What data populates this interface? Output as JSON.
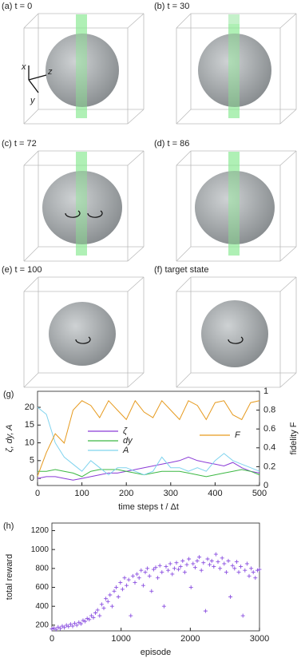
{
  "panels": [
    {
      "label": "(a) t = 0"
    },
    {
      "label": "(b) t = 30"
    },
    {
      "label": "(c) t = 72"
    },
    {
      "label": "(d) t = 86"
    },
    {
      "label": "(e) t = 100"
    },
    {
      "label": "(f) target state"
    }
  ],
  "triad": {
    "x": "x",
    "y": "y",
    "z": "z"
  },
  "chart_data": [
    {
      "type": "line",
      "panel_label": "(g)",
      "x_label": "time steps t / Δt",
      "y_label": "ζ, dy, A",
      "y2_label": "fidelity F",
      "x": [
        0,
        20,
        40,
        60,
        80,
        100,
        120,
        140,
        160,
        180,
        200,
        220,
        240,
        260,
        280,
        300,
        320,
        340,
        360,
        380,
        400,
        420,
        440,
        460,
        480,
        500
      ],
      "xlim": [
        0,
        500
      ],
      "xticks": [
        0,
        100,
        200,
        300,
        400,
        500
      ],
      "ylim": [
        -2,
        24.5
      ],
      "yticks": [
        0,
        5,
        10,
        15,
        20
      ],
      "y2lim": [
        0,
        1
      ],
      "y2ticks": [
        0,
        0.2,
        0.4,
        0.6,
        0.8,
        1
      ],
      "series": [
        {
          "name": "ζ",
          "color": "#8a3ad6",
          "values": [
            0,
            0.5,
            0.5,
            0,
            -0.5,
            0,
            0.5,
            1,
            1.5,
            1.5,
            2,
            2.5,
            3,
            3.5,
            4,
            4.5,
            5,
            6,
            5,
            4.5,
            4,
            3.5,
            4.5,
            3,
            2,
            1.5
          ]
        },
        {
          "name": "dy",
          "color": "#3cb843",
          "values": [
            2,
            2,
            2.5,
            2,
            1.5,
            0.5,
            2,
            2.5,
            2.5,
            2.5,
            2,
            1.5,
            1,
            1.5,
            2,
            2,
            2,
            1.5,
            1,
            0.5,
            1,
            1.5,
            2,
            2.5,
            2,
            1
          ]
        },
        {
          "name": "A",
          "color": "#7fd3ee",
          "values": [
            20,
            18,
            10,
            6,
            4,
            2,
            5,
            3,
            1,
            3,
            3,
            2,
            1,
            2,
            6,
            3,
            3,
            2,
            3,
            2,
            5,
            7,
            5,
            4,
            3,
            2
          ]
        },
        {
          "name": "F",
          "color": "#e69a1e",
          "axis": "y2",
          "values": [
            0.1,
            0.35,
            0.55,
            0.45,
            0.8,
            0.9,
            0.85,
            0.72,
            0.9,
            0.8,
            0.7,
            0.9,
            0.78,
            0.72,
            0.9,
            0.8,
            0.7,
            0.9,
            0.85,
            0.7,
            0.88,
            0.9,
            0.75,
            0.7,
            0.88,
            0.9
          ]
        }
      ]
    },
    {
      "type": "scatter",
      "panel_label": "(h)",
      "x_label": "episode",
      "y_label": "total reward",
      "color": "#8a4fe0",
      "xlim": [
        0,
        3000
      ],
      "xticks": [
        0,
        1000,
        2000,
        3000
      ],
      "ylim": [
        140,
        1280
      ],
      "yticks": [
        200,
        400,
        600,
        800,
        1000,
        1200
      ],
      "x": [
        0,
        30,
        60,
        90,
        120,
        150,
        180,
        210,
        240,
        270,
        300,
        330,
        360,
        390,
        420,
        450,
        480,
        510,
        540,
        570,
        600,
        630,
        660,
        690,
        720,
        750,
        780,
        810,
        840,
        870,
        900,
        930,
        960,
        990,
        1020,
        1050,
        1080,
        1110,
        1140,
        1170,
        1200,
        1230,
        1260,
        1290,
        1320,
        1350,
        1380,
        1410,
        1440,
        1470,
        1500,
        1530,
        1560,
        1590,
        1620,
        1650,
        1680,
        1710,
        1740,
        1770,
        1800,
        1830,
        1860,
        1890,
        1920,
        1950,
        1980,
        2010,
        2040,
        2070,
        2100,
        2130,
        2160,
        2190,
        2220,
        2250,
        2280,
        2310,
        2340,
        2370,
        2400,
        2430,
        2460,
        2490,
        2520,
        2550,
        2580,
        2610,
        2640,
        2670,
        2700,
        2730,
        2760,
        2790,
        2820,
        2850,
        2880,
        2910,
        2940,
        2970,
        3000
      ],
      "values": [
        160,
        170,
        155,
        180,
        165,
        190,
        175,
        200,
        185,
        210,
        190,
        220,
        200,
        230,
        215,
        250,
        240,
        270,
        260,
        300,
        280,
        330,
        360,
        300,
        420,
        380,
        480,
        450,
        520,
        400,
        560,
        600,
        500,
        650,
        580,
        700,
        620,
        680,
        300,
        720,
        650,
        740,
        700,
        780,
        620,
        760,
        800,
        720,
        560,
        790,
        810,
        700,
        830,
        760,
        400,
        820,
        780,
        850,
        740,
        800,
        860,
        790,
        820,
        880,
        760,
        840,
        900,
        600,
        850,
        810,
        880,
        920,
        780,
        860,
        350,
        900,
        840,
        880,
        820,
        950,
        870,
        800,
        910,
        850,
        760,
        880,
        500,
        830,
        800,
        870,
        760,
        820,
        300,
        780,
        850,
        720,
        800,
        760,
        700,
        780,
        790
      ]
    }
  ]
}
